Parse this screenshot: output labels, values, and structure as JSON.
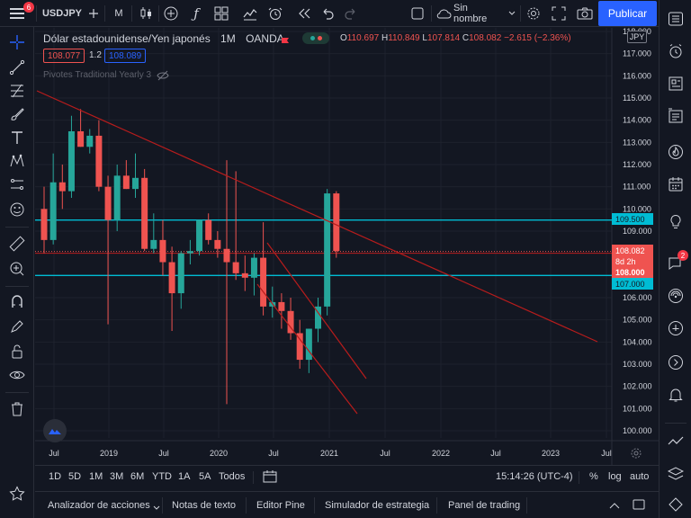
{
  "topbar": {
    "menu_badge": "6",
    "symbol": "USDJPY",
    "interval": "M",
    "layout_name": "Sin nombre",
    "publish_label": "Publicar"
  },
  "legend": {
    "title": "Dólar estadounidense/Yen japonés",
    "interval": "1M",
    "exchange": "OANDA",
    "ohlc": {
      "o_label": "O",
      "o": "110.697",
      "h_label": "H",
      "h": "110.849",
      "l_label": "L",
      "l": "107.814",
      "c_label": "C",
      "c": "108.082",
      "change": "−2.615 (−2.36%)"
    },
    "bid": "108.077",
    "spread": "1.2",
    "ask": "108.089",
    "indicator": "Pivotes Traditional Yearly 3"
  },
  "axis": {
    "currency": "JPY",
    "y_ticks": [
      "118.000",
      "117.000",
      "116.000",
      "115.000",
      "114.000",
      "113.000",
      "112.000",
      "111.000",
      "110.000",
      "109.000",
      "108.000",
      "107.000",
      "106.000",
      "105.000",
      "104.000",
      "103.000",
      "102.000",
      "101.000",
      "100.000"
    ],
    "x_ticks": [
      "Jul",
      "2019",
      "Jul",
      "2020",
      "Jul",
      "2021",
      "Jul",
      "2022",
      "Jul",
      "2023",
      "Jul"
    ],
    "price_tags": {
      "level_high": "109.500",
      "current": "108.082",
      "countdown": "8d 2h",
      "level_mid": "108.000",
      "level_low": "107.000"
    }
  },
  "bottombar": {
    "ranges": [
      "1D",
      "5D",
      "1M",
      "3M",
      "6M",
      "YTD",
      "1A",
      "5A",
      "Todos"
    ],
    "time": "15:14:26 (UTC-4)",
    "percent": "%",
    "log": "log",
    "auto": "auto"
  },
  "panels": [
    "Analizador de acciones",
    "Notas de texto",
    "Editor Pine",
    "Simulador de estrategia",
    "Panel de trading"
  ],
  "right_badge": "2",
  "colors": {
    "up": "#26a69a",
    "down": "#ef5350",
    "cyan_line": "#00bcd4",
    "trend": "#b71c1c",
    "accent": "#2962ff"
  },
  "chart_data": {
    "type": "candlestick",
    "ylim": [
      100,
      118
    ],
    "candles": [
      {
        "o": 110.0,
        "h": 111.0,
        "l": 108.0,
        "c": 108.6
      },
      {
        "o": 108.6,
        "h": 112.5,
        "l": 108.4,
        "c": 111.2
      },
      {
        "o": 111.2,
        "h": 112.0,
        "l": 110.0,
        "c": 110.8
      },
      {
        "o": 110.8,
        "h": 114.2,
        "l": 110.5,
        "c": 113.5
      },
      {
        "o": 113.5,
        "h": 114.5,
        "l": 112.8,
        "c": 112.8
      },
      {
        "o": 112.8,
        "h": 113.6,
        "l": 112.5,
        "c": 113.3
      },
      {
        "o": 113.3,
        "h": 114.0,
        "l": 110.8,
        "c": 111.0
      },
      {
        "o": 111.0,
        "h": 111.5,
        "l": 104.8,
        "c": 109.5
      },
      {
        "o": 109.5,
        "h": 112.0,
        "l": 109.0,
        "c": 111.5
      },
      {
        "o": 111.5,
        "h": 112.2,
        "l": 110.9,
        "c": 110.9
      },
      {
        "o": 110.9,
        "h": 112.5,
        "l": 110.5,
        "c": 111.4
      },
      {
        "o": 111.4,
        "h": 111.8,
        "l": 108.1,
        "c": 108.2
      },
      {
        "o": 108.2,
        "h": 109.8,
        "l": 108.0,
        "c": 108.6
      },
      {
        "o": 108.6,
        "h": 109.5,
        "l": 107.0,
        "c": 107.6
      },
      {
        "o": 107.6,
        "h": 108.3,
        "l": 104.5,
        "c": 106.2
      },
      {
        "o": 106.2,
        "h": 108.1,
        "l": 105.5,
        "c": 108.0
      },
      {
        "o": 108.0,
        "h": 108.6,
        "l": 107.5,
        "c": 108.1
      },
      {
        "o": 108.1,
        "h": 109.5,
        "l": 107.9,
        "c": 109.5
      },
      {
        "o": 109.5,
        "h": 109.8,
        "l": 108.4,
        "c": 108.6
      },
      {
        "o": 108.6,
        "h": 109.0,
        "l": 107.8,
        "c": 108.2
      },
      {
        "o": 108.2,
        "h": 112.2,
        "l": 101.2,
        "c": 107.6
      },
      {
        "o": 107.6,
        "h": 111.7,
        "l": 106.8,
        "c": 107.1
      },
      {
        "o": 107.1,
        "h": 107.9,
        "l": 106.3,
        "c": 106.9
      },
      {
        "o": 106.9,
        "h": 108.0,
        "l": 106.1,
        "c": 107.8
      },
      {
        "o": 107.8,
        "h": 109.4,
        "l": 105.2,
        "c": 105.6
      },
      {
        "o": 105.6,
        "h": 106.5,
        "l": 105.1,
        "c": 105.8
      },
      {
        "o": 105.8,
        "h": 106.2,
        "l": 104.6,
        "c": 105.4
      },
      {
        "o": 105.4,
        "h": 106.0,
        "l": 104.1,
        "c": 104.4
      },
      {
        "o": 104.4,
        "h": 105.0,
        "l": 102.8,
        "c": 103.2
      },
      {
        "o": 103.2,
        "h": 104.6,
        "l": 102.6,
        "c": 104.6
      },
      {
        "o": 104.6,
        "h": 106.0,
        "l": 104.0,
        "c": 105.6
      },
      {
        "o": 105.6,
        "h": 110.9,
        "l": 105.2,
        "c": 110.7
      },
      {
        "o": 110.7,
        "h": 110.8,
        "l": 107.8,
        "c": 108.1
      }
    ],
    "horizontal_levels": [
      109.5,
      108.0,
      107.0
    ],
    "current_price": 108.082
  }
}
